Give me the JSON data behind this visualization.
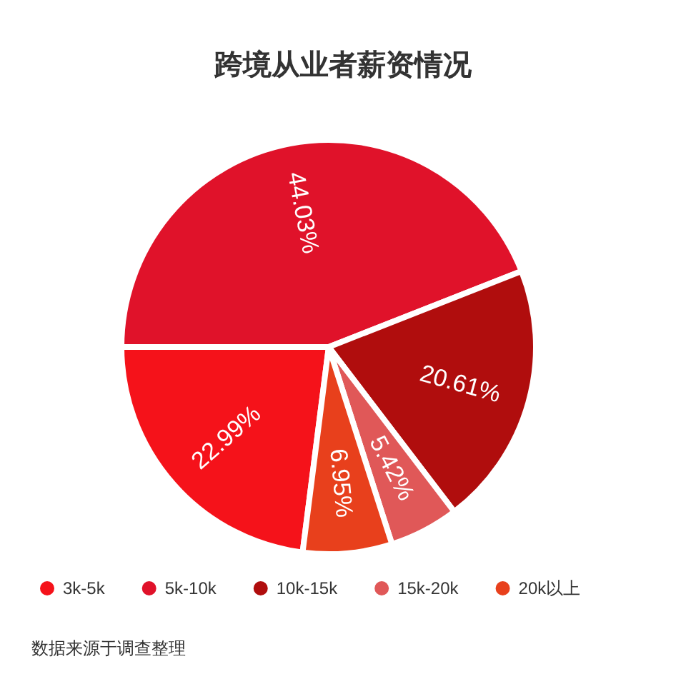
{
  "chart_data": {
    "type": "pie",
    "title": "跨境从业者薪资情况",
    "categories": [
      "3k-5k",
      "5k-10k",
      "10k-15k",
      "15k-20k",
      "20k以上"
    ],
    "values": [
      22.99,
      44.03,
      20.61,
      5.42,
      6.95
    ],
    "colors": [
      "#f5121a",
      "#e0122a",
      "#b00d0d",
      "#e05858",
      "#e8401c"
    ],
    "value_labels": [
      "22.99%",
      "44.03%",
      "20.61%",
      "5.42%",
      "6.95%"
    ],
    "legend": "bottom",
    "annotations": [
      "数据来源于调查整理"
    ]
  }
}
